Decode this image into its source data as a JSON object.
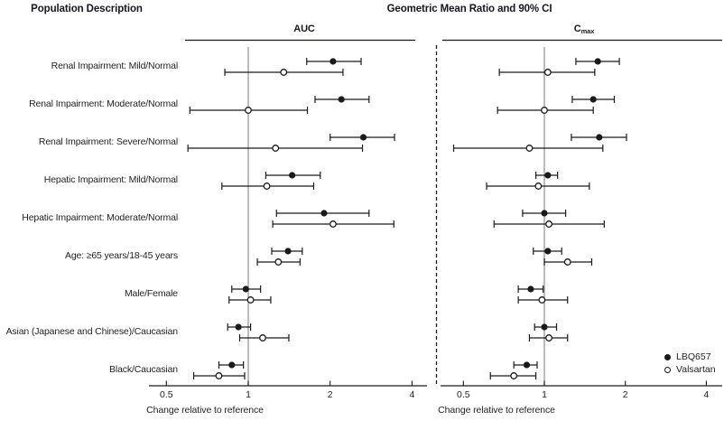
{
  "header": {
    "population_title": "Population Description",
    "main_title": "Geometric Mean Ratio and 90% CI"
  },
  "panels_meta": [
    {
      "title": "AUC",
      "title_sub": ""
    },
    {
      "title": "C",
      "title_sub": "max"
    }
  ],
  "axis": {
    "caption": "Change relative to reference",
    "scale": "log2",
    "tick_values": [
      0.5,
      1,
      2,
      4
    ],
    "tick_labels": [
      "0.5",
      "1",
      "2",
      "4"
    ],
    "reference_value": 1
  },
  "legend": {
    "items": [
      {
        "marker": "filled-circle",
        "label": "LBQ657"
      },
      {
        "marker": "open-circle",
        "label": "Valsartan"
      }
    ]
  },
  "colors": {
    "marker": "#1a1a1a",
    "reference_line": "#909090",
    "header_text": "#16161f",
    "body_text": "#232323",
    "background": "#ffffff"
  },
  "chart_data": {
    "type": "forest",
    "title": "Geometric Mean Ratio and 90% CI",
    "xlabel": "Change relative to reference",
    "x_scale": "log",
    "x_ticks": [
      0.5,
      1,
      2,
      4
    ],
    "x_range": [
      0.4,
      4.8
    ],
    "legend_position": "bottom-right of Cmax panel",
    "point_format": [
      "ratio",
      "ci_lower",
      "ci_upper"
    ],
    "categories": [
      "Renal Impairment: Mild/Normal",
      "Renal Impairment: Moderate/Normal",
      "Renal Impairment: Severe/Normal",
      "Hepatic Impairment: Mild/Normal",
      "Hepatic Impairment: Moderate/Normal",
      "Age: ≥65 years/18-45 years",
      "Male/Female",
      "Asian (Japanese and Chinese)/Caucasian",
      "Black/Caucasian"
    ],
    "panels": [
      {
        "name": "AUC",
        "series": [
          {
            "name": "LBQ657",
            "marker": "filled-circle",
            "points": [
              [
                2.05,
                1.64,
                2.6
              ],
              [
                2.2,
                1.76,
                2.78
              ],
              [
                2.65,
                2.0,
                3.45
              ],
              [
                1.45,
                1.16,
                1.84
              ],
              [
                1.9,
                1.27,
                2.78
              ],
              [
                1.4,
                1.22,
                1.58
              ],
              [
                0.98,
                0.87,
                1.11
              ],
              [
                0.92,
                0.84,
                1.02
              ],
              [
                0.87,
                0.78,
                0.96
              ]
            ]
          },
          {
            "name": "Valsartan",
            "marker": "open-circle",
            "points": [
              [
                1.35,
                0.82,
                2.23
              ],
              [
                1.0,
                0.61,
                1.65
              ],
              [
                1.26,
                0.6,
                2.63
              ],
              [
                1.17,
                0.8,
                1.74
              ],
              [
                2.05,
                1.23,
                3.43
              ],
              [
                1.29,
                1.08,
                1.55
              ],
              [
                1.02,
                0.85,
                1.21
              ],
              [
                1.13,
                0.93,
                1.41
              ],
              [
                0.78,
                0.63,
                0.97
              ]
            ]
          }
        ]
      },
      {
        "name": "Cmax",
        "series": [
          {
            "name": "LBQ657",
            "marker": "filled-circle",
            "points": [
              [
                1.58,
                1.31,
                1.9
              ],
              [
                1.52,
                1.27,
                1.82
              ],
              [
                1.6,
                1.26,
                2.02
              ],
              [
                1.03,
                0.93,
                1.12
              ],
              [
                1.0,
                0.83,
                1.2
              ],
              [
                1.03,
                0.91,
                1.16
              ],
              [
                0.89,
                0.8,
                0.99
              ],
              [
                1.0,
                0.92,
                1.11
              ],
              [
                0.86,
                0.77,
                0.94
              ]
            ]
          },
          {
            "name": "Valsartan",
            "marker": "open-circle",
            "points": [
              [
                1.03,
                0.68,
                1.54
              ],
              [
                1.0,
                0.67,
                1.52
              ],
              [
                0.88,
                0.46,
                1.65
              ],
              [
                0.95,
                0.61,
                1.47
              ],
              [
                1.04,
                0.65,
                1.67
              ],
              [
                1.22,
                1.0,
                1.5
              ],
              [
                0.98,
                0.8,
                1.22
              ],
              [
                1.04,
                0.88,
                1.22
              ],
              [
                0.77,
                0.63,
                0.93
              ]
            ]
          }
        ]
      }
    ]
  }
}
